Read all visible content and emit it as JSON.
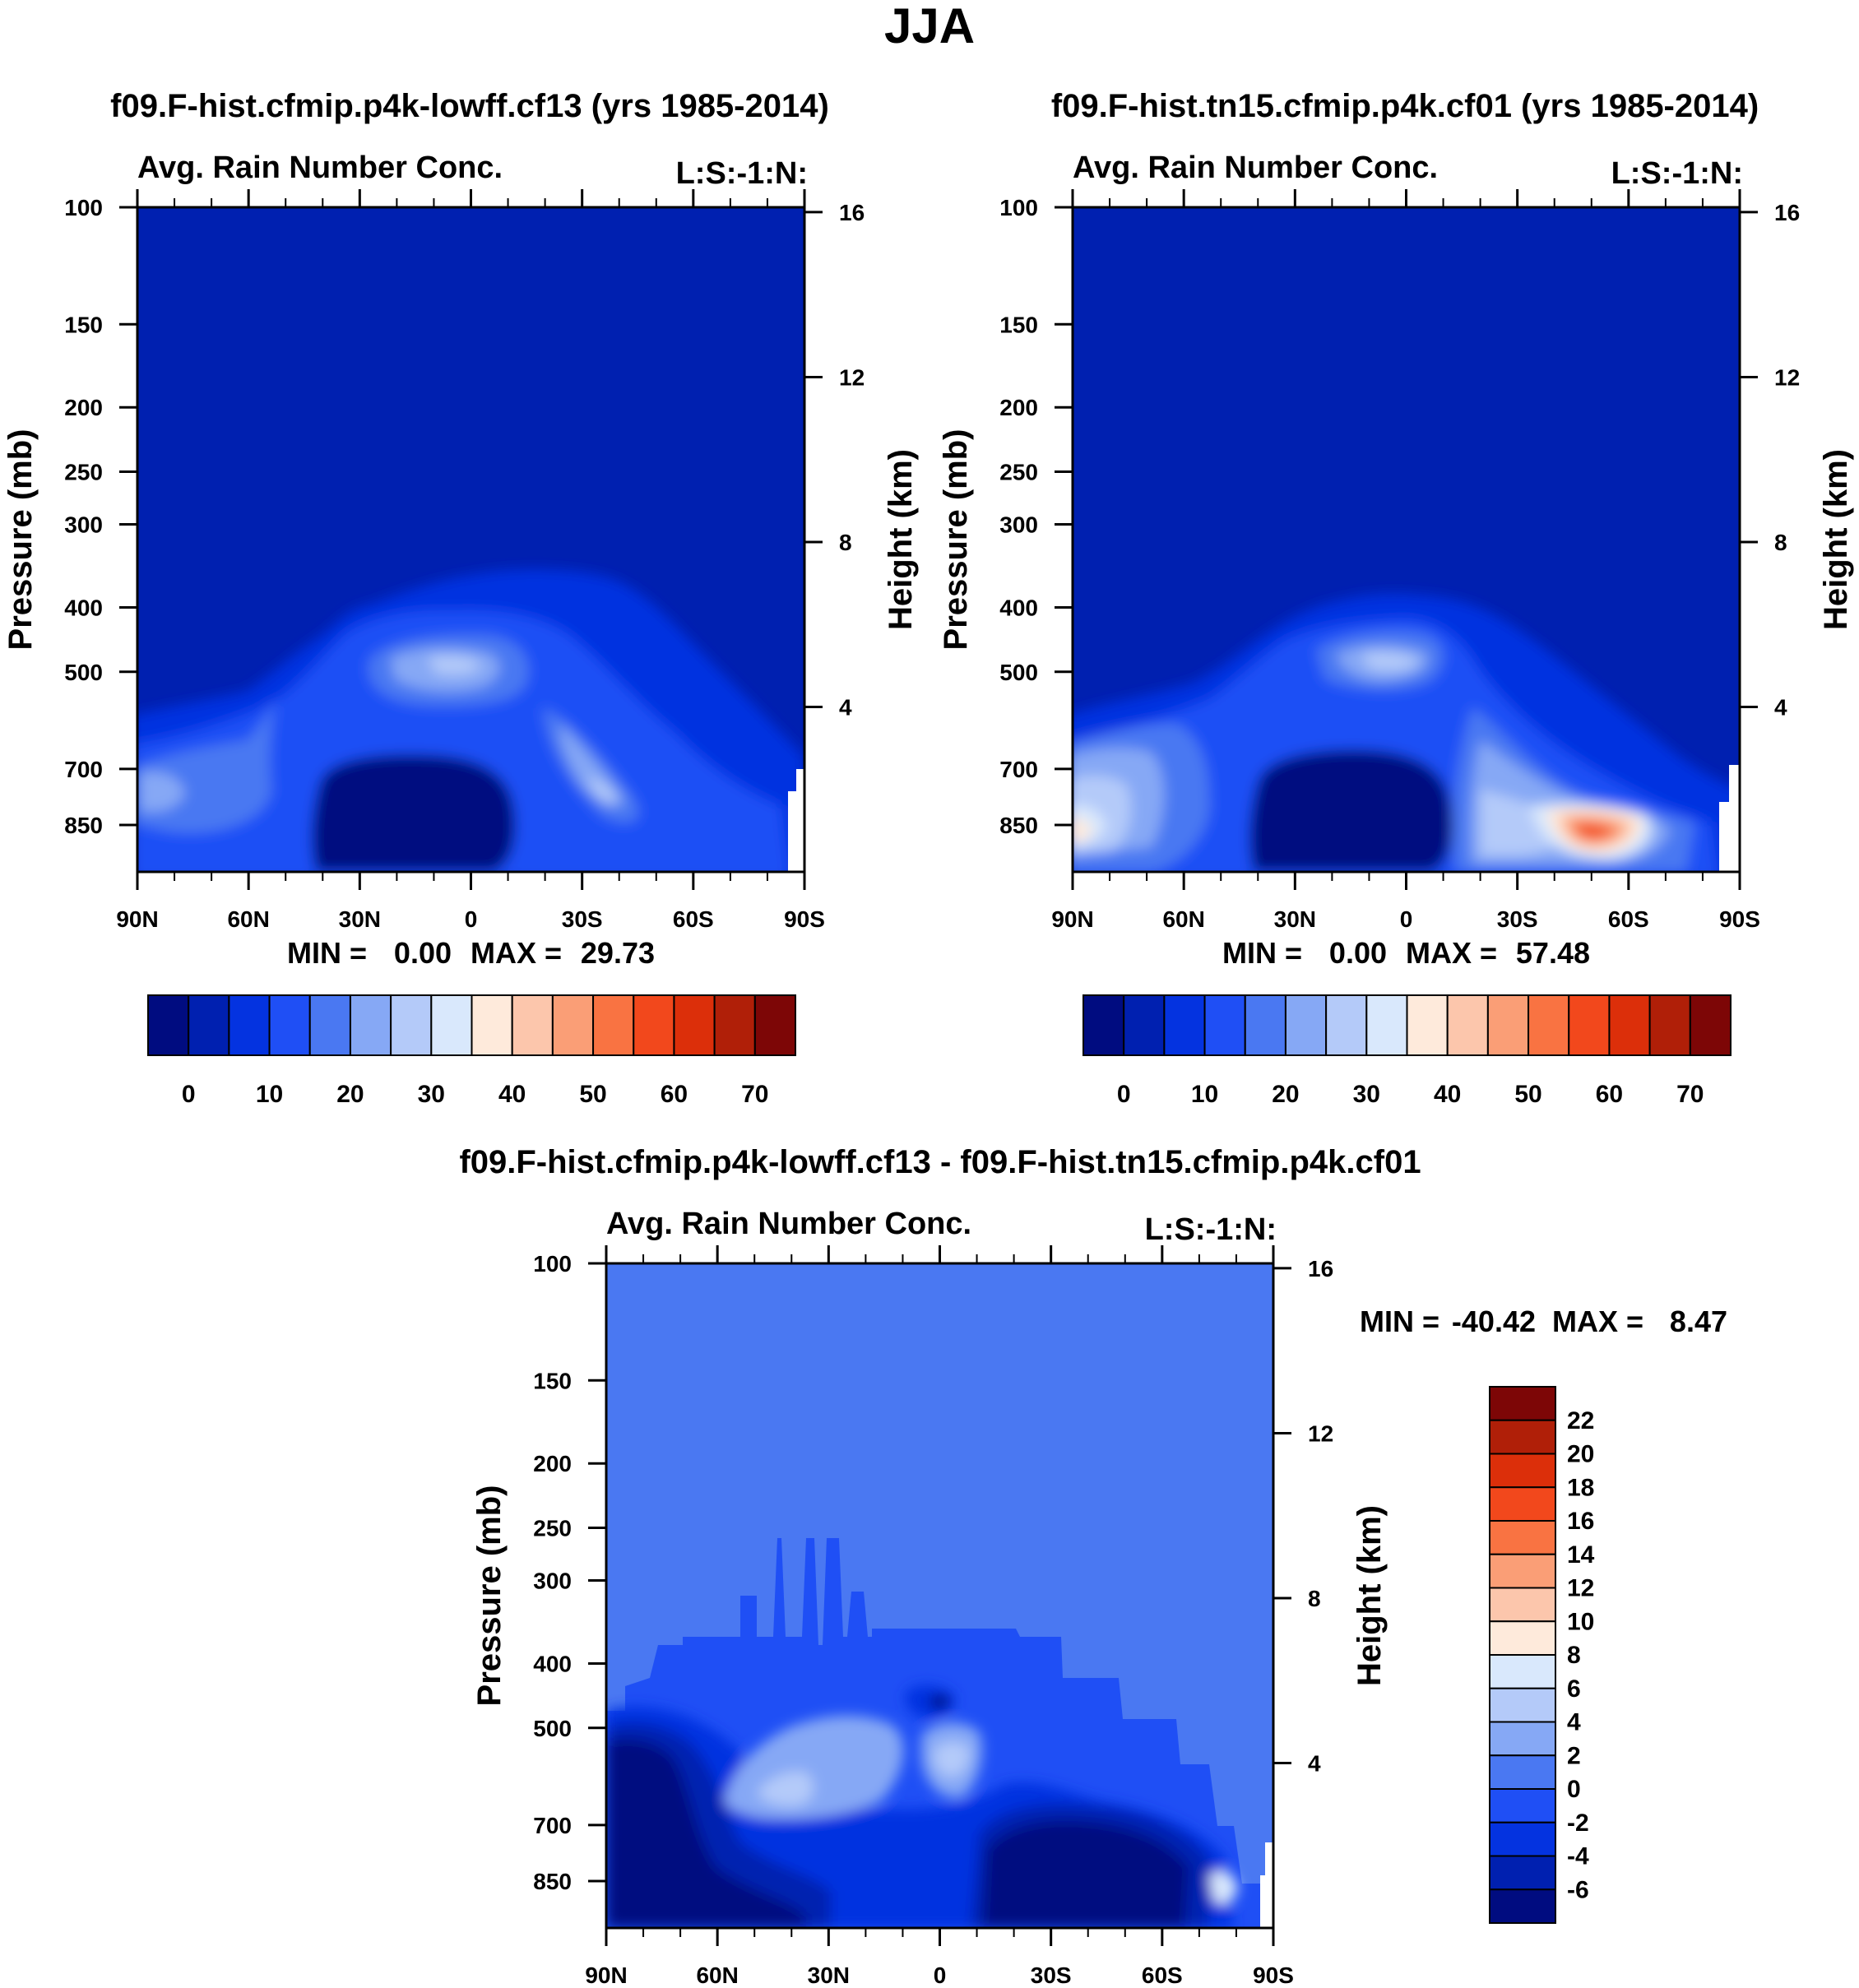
{
  "season_title": "JJA",
  "panels": {
    "p1": {
      "case_title": "f09.F-hist.cfmip.p4k-lowff.cf13 (yrs 1985-2014)",
      "variable": "Avg. Rain Number Conc.",
      "corner_label": "L:S:-1:N:",
      "stats": {
        "min_label": "MIN =",
        "min_value": "0.00",
        "max_label": "MAX =",
        "max_value": "29.73"
      }
    },
    "p2": {
      "case_title": "f09.F-hist.tn15.cfmip.p4k.cf01 (yrs 1985-2014)",
      "variable": "Avg. Rain Number Conc.",
      "corner_label": "L:S:-1:N:",
      "stats": {
        "min_label": "MIN =",
        "min_value": "0.00",
        "max_label": "MAX =",
        "max_value": "57.48"
      }
    },
    "p3": {
      "case_title": "f09.F-hist.cfmip.p4k-lowff.cf13 - f09.F-hist.tn15.cfmip.p4k.cf01",
      "variable": "Avg. Rain Number Conc.",
      "corner_label": "L:S:-1:N:",
      "stats": {
        "min_label": "MIN =",
        "min_value": "-40.42",
        "max_label": "MAX =",
        "max_value": "8.47"
      }
    }
  },
  "chart_data": [
    {
      "type": "heatmap",
      "panel": "p1",
      "ylabel": "Pressure (mb)",
      "y2label": "Height (km)",
      "x_ticks": [
        "90N",
        "60N",
        "30N",
        "0",
        "30S",
        "60S",
        "90S"
      ],
      "x_tick_values": [
        90,
        60,
        30,
        0,
        -30,
        -60,
        -90
      ],
      "xlim": [
        90,
        -90
      ],
      "y_ticks": [
        100,
        150,
        200,
        250,
        300,
        400,
        500,
        700,
        850
      ],
      "ylim": [
        100,
        1000
      ],
      "y_scale": "log",
      "y2_ticks": [
        4,
        8,
        12,
        16
      ],
      "min": 0.0,
      "max": 29.73,
      "colorbar": {
        "orientation": "horizontal",
        "labels": [
          "0",
          "10",
          "20",
          "30",
          "40",
          "50",
          "60",
          "70"
        ],
        "colors": [
          "#000c80",
          "#0020b0",
          "#0433e0",
          "#1f4ff5",
          "#4a78f2",
          "#86a8f5",
          "#b4caf9",
          "#d9e8fc",
          "#feeadb",
          "#fcc6ac",
          "#fa9e76",
          "#f97342",
          "#f2481c",
          "#dc2f0a",
          "#b01f08",
          "#7d0606"
        ]
      }
    },
    {
      "type": "heatmap",
      "panel": "p2",
      "ylabel": "Pressure (mb)",
      "y2label": "Height (km)",
      "x_ticks": [
        "90N",
        "60N",
        "30N",
        "0",
        "30S",
        "60S",
        "90S"
      ],
      "x_tick_values": [
        90,
        60,
        30,
        0,
        -30,
        -60,
        -90
      ],
      "xlim": [
        90,
        -90
      ],
      "y_ticks": [
        100,
        150,
        200,
        250,
        300,
        400,
        500,
        700,
        850
      ],
      "ylim": [
        100,
        1000
      ],
      "y_scale": "log",
      "y2_ticks": [
        4,
        8,
        12,
        16
      ],
      "min": 0.0,
      "max": 57.48,
      "colorbar": {
        "orientation": "horizontal",
        "labels": [
          "0",
          "10",
          "20",
          "30",
          "40",
          "50",
          "60",
          "70"
        ],
        "colors": [
          "#000c80",
          "#0020b0",
          "#0433e0",
          "#1f4ff5",
          "#4a78f2",
          "#86a8f5",
          "#b4caf9",
          "#d9e8fc",
          "#feeadb",
          "#fcc6ac",
          "#fa9e76",
          "#f97342",
          "#f2481c",
          "#dc2f0a",
          "#b01f08",
          "#7d0606"
        ]
      }
    },
    {
      "type": "heatmap",
      "panel": "p3",
      "ylabel": "Pressure (mb)",
      "y2label": "Height (km)",
      "x_ticks": [
        "90N",
        "60N",
        "30N",
        "0",
        "30S",
        "60S",
        "90S"
      ],
      "x_tick_values": [
        90,
        60,
        30,
        0,
        -30,
        -60,
        -90
      ],
      "xlim": [
        90,
        -90
      ],
      "y_ticks": [
        100,
        150,
        200,
        250,
        300,
        400,
        500,
        700,
        850
      ],
      "ylim": [
        100,
        1000
      ],
      "y_scale": "log",
      "y2_ticks": [
        4,
        8,
        12,
        16
      ],
      "min": -40.42,
      "max": 8.47,
      "colorbar": {
        "orientation": "vertical",
        "labels": [
          "22",
          "20",
          "18",
          "16",
          "14",
          "12",
          "10",
          "8",
          "6",
          "4",
          "2",
          "0",
          "-2",
          "-4",
          "-6"
        ],
        "colors": [
          "#7d0606",
          "#b01f08",
          "#dc2f0a",
          "#f2481c",
          "#f97342",
          "#fa9e76",
          "#fcc6ac",
          "#feeadb",
          "#d9e8fc",
          "#b4caf9",
          "#86a8f5",
          "#4a78f2",
          "#1f4ff5",
          "#0433e0",
          "#0020b0",
          "#000c80"
        ]
      }
    }
  ]
}
